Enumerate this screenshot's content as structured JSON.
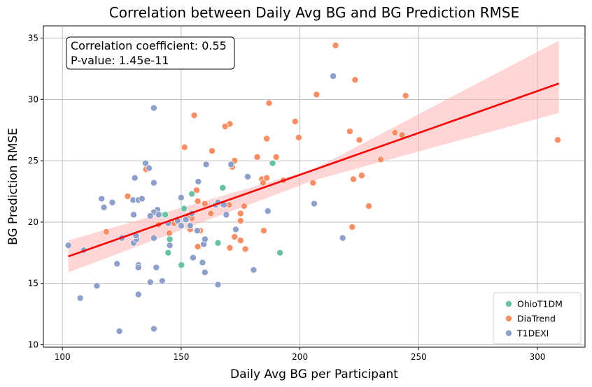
{
  "chart_data": {
    "type": "scatter",
    "title": "Correlation between Daily Avg BG and BG Prediction RMSE",
    "xlabel": "Daily Avg BG per Participant",
    "ylabel": "BG Prediction RMSE",
    "xlim": [
      92,
      320
    ],
    "ylim": [
      9.8,
      36
    ],
    "xticks": [
      100,
      150,
      200,
      250,
      300
    ],
    "yticks": [
      10,
      15,
      20,
      25,
      30,
      35
    ],
    "grid": true,
    "legend_position": "lower-right",
    "annotation": {
      "line1": "Correlation coefficient: 0.55",
      "line2": "P-value: 1.45e-11"
    },
    "regression": {
      "x_start": 102.5,
      "y_start": 17.2,
      "x_end": 309,
      "y_end": 31.3,
      "color": "#ff0000",
      "ci_color": "#ffb3b3",
      "ci_start": [
        15.9,
        18.5
      ],
      "ci_mid": [
        23.4,
        24.3
      ],
      "ci_end": [
        28.9,
        34.8
      ]
    },
    "series": [
      {
        "name": "OhioT1DM",
        "color": "#66c2a5",
        "points": [
          [
            154.5,
            22.3
          ],
          [
            188.5,
            24.8
          ],
          [
            167.5,
            22.8
          ],
          [
            141.2,
            20.6
          ],
          [
            143.3,
            20.6
          ],
          [
            151.2,
            21.1
          ],
          [
            144.5,
            17.5
          ],
          [
            145.2,
            18.6
          ],
          [
            150.1,
            16.5
          ],
          [
            165.5,
            18.3
          ],
          [
            191.6,
            17.5
          ]
        ]
      },
      {
        "name": "DiaTrend",
        "color": "#fc8d62",
        "points": [
          [
            215,
            34.4
          ],
          [
            207,
            30.4
          ],
          [
            223.2,
            31.6
          ],
          [
            244.5,
            30.3
          ],
          [
            187,
            29.7
          ],
          [
            155.5,
            28.7
          ],
          [
            170.5,
            28
          ],
          [
            168.5,
            27.8
          ],
          [
            198,
            28.2
          ],
          [
            199.5,
            26.9
          ],
          [
            240,
            27.3
          ],
          [
            243,
            27.1
          ],
          [
            221,
            27.4
          ],
          [
            186,
            26.8
          ],
          [
            225,
            26.7
          ],
          [
            308.5,
            26.7
          ],
          [
            151.4,
            26.1
          ],
          [
            163,
            25.8
          ],
          [
            172.5,
            25
          ],
          [
            182,
            25.3
          ],
          [
            190,
            25.3
          ],
          [
            171.5,
            24.5
          ],
          [
            184,
            23.5
          ],
          [
            186,
            23.6
          ],
          [
            184.5,
            23.2
          ],
          [
            222.5,
            23.5
          ],
          [
            226,
            23.8
          ],
          [
            234,
            25.1
          ],
          [
            193,
            23.4
          ],
          [
            205.5,
            23.2
          ],
          [
            135.2,
            24.3
          ],
          [
            156.5,
            22.6
          ],
          [
            157,
            21.7
          ],
          [
            160,
            21.5
          ],
          [
            170.2,
            21.4
          ],
          [
            166.8,
            21.5
          ],
          [
            176.5,
            21.3
          ],
          [
            162.5,
            20.7
          ],
          [
            175,
            20.7
          ],
          [
            175,
            20.1
          ],
          [
            229,
            21.3
          ],
          [
            222,
            19.6
          ],
          [
            154.5,
            20.3
          ],
          [
            152.8,
            20.5
          ],
          [
            147,
            19.9
          ],
          [
            153.8,
            19.4
          ],
          [
            158,
            19.3
          ],
          [
            140.5,
            19.8
          ],
          [
            118.5,
            19.2
          ],
          [
            127.5,
            22.1
          ],
          [
            145,
            19.1
          ],
          [
            172.5,
            18.8
          ],
          [
            170.5,
            17.9
          ],
          [
            157,
            18
          ],
          [
            175,
            18.5
          ],
          [
            177,
            17.8
          ],
          [
            184.8,
            19.3
          ],
          [
            131.2,
            18.8
          ]
        ]
      },
      {
        "name": "T1DEXI",
        "color": "#8da0cb",
        "points": [
          [
            214,
            31.9
          ],
          [
            138.5,
            29.3
          ],
          [
            135,
            24.8
          ],
          [
            136.5,
            24.4
          ],
          [
            130.5,
            23.6
          ],
          [
            138.5,
            23.2
          ],
          [
            157.2,
            23.3
          ],
          [
            160.5,
            24.7
          ],
          [
            171,
            24.7
          ],
          [
            178,
            23.7
          ],
          [
            116.5,
            21.9
          ],
          [
            121,
            21.6
          ],
          [
            129.8,
            21.8
          ],
          [
            132,
            21.8
          ],
          [
            133.5,
            21.9
          ],
          [
            150,
            22
          ],
          [
            140,
            21
          ],
          [
            138.5,
            20.8
          ],
          [
            137,
            20.5
          ],
          [
            140.5,
            20.6
          ],
          [
            144.5,
            19.9
          ],
          [
            117.5,
            21.2
          ],
          [
            130,
            20.6
          ],
          [
            148.5,
            20.1
          ],
          [
            152,
            20.2
          ],
          [
            154.5,
            20.7
          ],
          [
            153.8,
            19.7
          ],
          [
            150,
            19.7
          ],
          [
            156.8,
            19.3
          ],
          [
            164.5,
            21.4
          ],
          [
            165.5,
            21.6
          ],
          [
            168,
            21.4
          ],
          [
            173,
            19.4
          ],
          [
            169,
            20.6
          ],
          [
            186.5,
            20.9
          ],
          [
            206,
            21.5
          ],
          [
            125,
            18.7
          ],
          [
            130,
            18.3
          ],
          [
            131.2,
            18.6
          ],
          [
            131,
            18.9
          ],
          [
            138.5,
            18.7
          ],
          [
            145.2,
            18.1
          ],
          [
            159.5,
            18.2
          ],
          [
            160,
            18.6
          ],
          [
            123,
            16.6
          ],
          [
            132,
            16.5
          ],
          [
            132,
            16.3
          ],
          [
            139.5,
            16.3
          ],
          [
            155,
            17.1
          ],
          [
            159,
            16.7
          ],
          [
            160,
            15.9
          ],
          [
            180.5,
            16.1
          ],
          [
            102.5,
            18.1
          ],
          [
            109,
            17.7
          ],
          [
            114.5,
            14.8
          ],
          [
            107.5,
            13.8
          ],
          [
            137,
            15.1
          ],
          [
            142,
            15.2
          ],
          [
            165.5,
            14.9
          ],
          [
            218,
            18.7
          ],
          [
            132,
            14.1
          ],
          [
            124,
            11.1
          ],
          [
            138.5,
            11.3
          ]
        ]
      }
    ]
  }
}
